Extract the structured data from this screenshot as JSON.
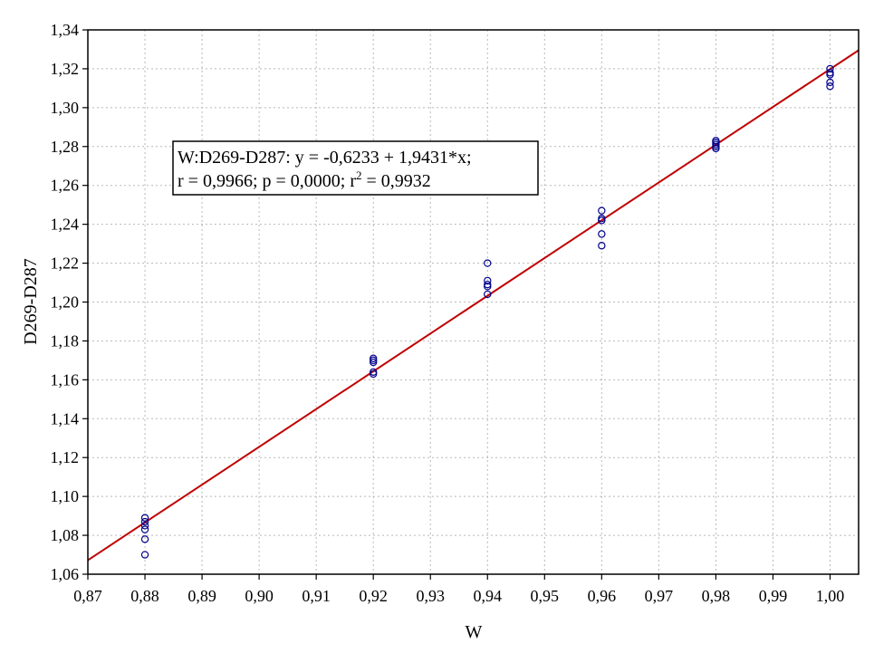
{
  "chart_data": {
    "type": "scatter",
    "xlabel": "W",
    "ylabel": "D269-D287",
    "xlim": [
      0.87,
      1.005
    ],
    "ylim": [
      1.06,
      1.34
    ],
    "x_ticks": [
      0.87,
      0.88,
      0.89,
      0.9,
      0.91,
      0.92,
      0.93,
      0.94,
      0.95,
      0.96,
      0.97,
      0.98,
      0.99,
      1.0
    ],
    "x_tick_labels": [
      "0,87",
      "0,88",
      "0,89",
      "0,90",
      "0,91",
      "0,92",
      "0,93",
      "0,94",
      "0,95",
      "0,96",
      "0,97",
      "0,98",
      "0,99",
      "1,00"
    ],
    "y_ticks": [
      1.06,
      1.08,
      1.1,
      1.12,
      1.14,
      1.16,
      1.18,
      1.2,
      1.22,
      1.24,
      1.26,
      1.28,
      1.3,
      1.32,
      1.34
    ],
    "y_tick_labels": [
      "1,06",
      "1,08",
      "1,10",
      "1,12",
      "1,14",
      "1,16",
      "1,18",
      "1,20",
      "1,22",
      "1,24",
      "1,26",
      "1,28",
      "1,30",
      "1,32",
      "1,34"
    ],
    "grid": true,
    "points": {
      "x": [
        0.88,
        0.88,
        0.88,
        0.88,
        0.88,
        0.88,
        0.92,
        0.92,
        0.92,
        0.92,
        0.92,
        0.94,
        0.94,
        0.94,
        0.94,
        0.94,
        0.96,
        0.96,
        0.96,
        0.96,
        0.96,
        0.98,
        0.98,
        0.98,
        0.98,
        0.98,
        1.0,
        1.0,
        1.0,
        1.0,
        1.0
      ],
      "y": [
        1.089,
        1.085,
        1.083,
        1.078,
        1.07,
        1.087,
        1.171,
        1.169,
        1.164,
        1.163,
        1.17,
        1.22,
        1.211,
        1.208,
        1.204,
        1.209,
        1.247,
        1.242,
        1.235,
        1.229,
        1.243,
        1.282,
        1.281,
        1.279,
        1.283,
        1.28,
        1.32,
        1.317,
        1.313,
        1.311,
        1.318
      ]
    },
    "point_color": "#00008b",
    "fit": {
      "intercept": -0.6233,
      "slope": 1.9431,
      "color": "#c00000",
      "x_range": [
        0.87,
        1.005
      ]
    },
    "annotation": {
      "line1": "W:D269-D287: y = -0,6233 + 1,9431*x;",
      "line2_prefix": "r = 0,9966; p = 0,0000; r",
      "line2_sup": "2",
      "line2_suffix": " = 0,9932"
    }
  }
}
